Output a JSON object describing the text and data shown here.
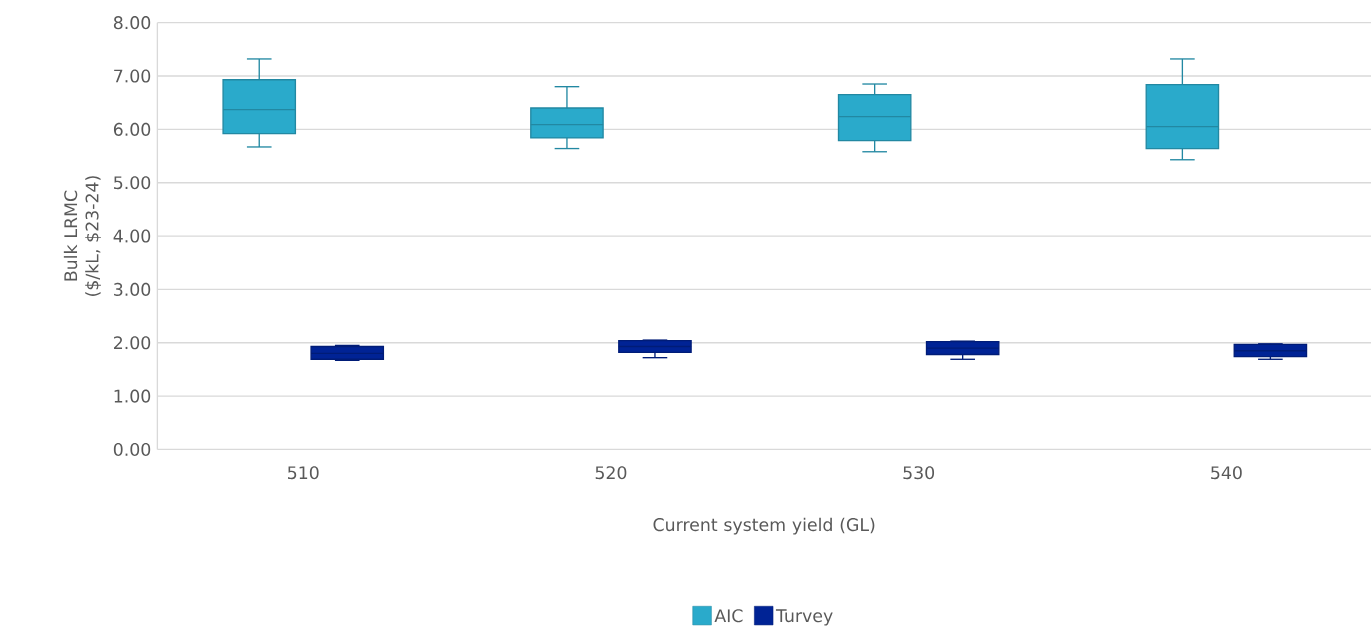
{
  "chart_data": {
    "type": "box",
    "xlabel": "Current system yield (GL)",
    "ylabel": "Bulk LRMC ($/kL, $23-24)",
    "categories": [
      "510",
      "520",
      "530",
      "540"
    ],
    "series": [
      {
        "name": "AIC",
        "color": "#2aaacb",
        "boxes": [
          {
            "low": 5.67,
            "q1": 5.92,
            "median": 6.37,
            "q3": 6.93,
            "high": 7.32
          },
          {
            "low": 5.64,
            "q1": 5.84,
            "median": 6.09,
            "q3": 6.4,
            "high": 6.8
          },
          {
            "low": 5.58,
            "q1": 5.79,
            "median": 6.24,
            "q3": 6.65,
            "high": 6.85
          },
          {
            "low": 5.43,
            "q1": 5.64,
            "median": 6.05,
            "q3": 6.84,
            "high": 7.32
          }
        ]
      },
      {
        "name": "Turvey",
        "color": "#002395",
        "boxes": [
          {
            "low": 1.67,
            "q1": 1.69,
            "median": 1.8,
            "q3": 1.93,
            "high": 1.95
          },
          {
            "low": 1.72,
            "q1": 1.82,
            "median": 1.93,
            "q3": 2.04,
            "high": 2.05
          },
          {
            "low": 1.69,
            "q1": 1.78,
            "median": 1.9,
            "q3": 2.02,
            "high": 2.03
          },
          {
            "low": 1.69,
            "q1": 1.74,
            "median": 1.85,
            "q3": 1.97,
            "high": 1.98
          }
        ]
      }
    ],
    "ylim": [
      0,
      8
    ],
    "yticks": [
      {
        "value": 0,
        "label": "0.00"
      },
      {
        "value": 1,
        "label": "1.00"
      },
      {
        "value": 2,
        "label": "2.00"
      },
      {
        "value": 3,
        "label": "3.00"
      },
      {
        "value": 4,
        "label": "4.00"
      },
      {
        "value": 5,
        "label": "5.00"
      },
      {
        "value": 6,
        "label": "6.00"
      },
      {
        "value": 7,
        "label": "7.00"
      },
      {
        "value": 8,
        "label": "8.00"
      }
    ],
    "grid": "y",
    "legend": "bottom"
  }
}
